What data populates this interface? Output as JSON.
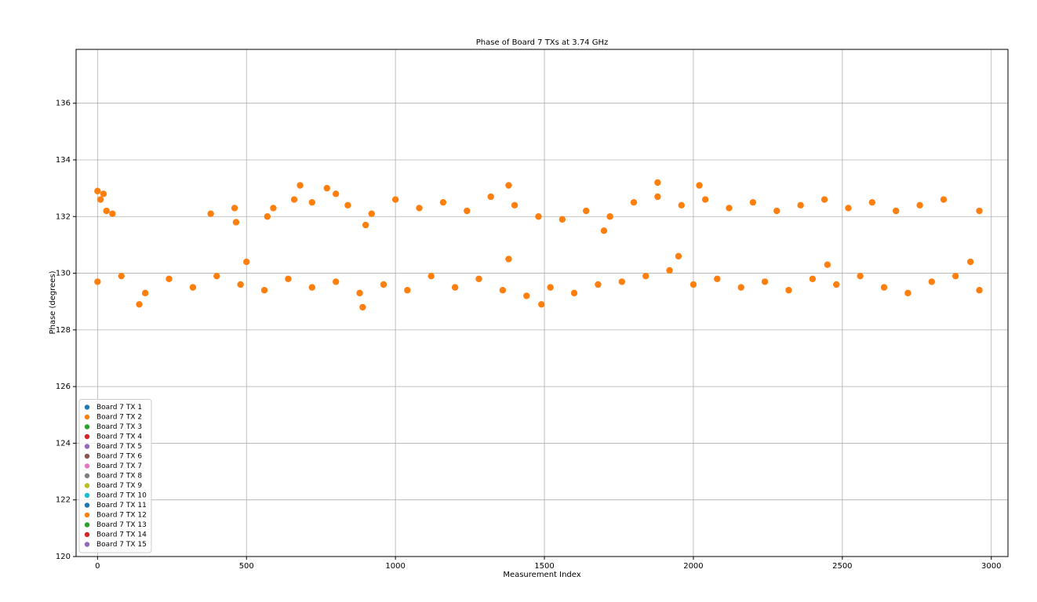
{
  "chart_data": {
    "type": "scatter",
    "title": "Phase of Board 7 TXs at 3.74 GHz",
    "x_label": "Measurement Index",
    "y_label": "Phase (degrees)",
    "xlim": [
      -72,
      3056
    ],
    "ylim": [
      120,
      137.9
    ],
    "xticks": [
      0,
      500,
      1000,
      1500,
      2000,
      2500,
      3000
    ],
    "yticks": [
      120,
      122,
      124,
      126,
      128,
      130,
      132,
      134,
      136
    ],
    "grid": true,
    "legend_position": "lower left",
    "series": [
      {
        "name": "Board 7 TX 1",
        "color": "#1f77b4",
        "x": [],
        "values": []
      },
      {
        "name": "Board 7 TX 2",
        "color": "#ff7f0e",
        "x": [
          0,
          80,
          160,
          240,
          320,
          400,
          480,
          560,
          640,
          720,
          800,
          880,
          960,
          1040,
          1120,
          1200,
          1280,
          1360,
          1440,
          1520,
          1600,
          1680,
          1760,
          1840,
          1920,
          2000,
          2080,
          2160,
          2240,
          2320,
          2400,
          2480,
          2560,
          2640,
          2720,
          2800,
          2880,
          2960,
          140,
          500,
          890,
          1380,
          1950,
          2450,
          2930,
          1490,
          840,
          920,
          1000,
          1080,
          1160,
          1240,
          1320,
          1400,
          1480,
          1560,
          1640,
          1720,
          1800,
          1880,
          1960,
          2040,
          2120,
          2200,
          2280,
          2360,
          2440,
          2520,
          2600,
          2680,
          2760,
          2840,
          2960,
          1380,
          1880,
          2020,
          1700,
          900,
          0,
          10,
          20,
          30,
          50,
          380,
          460,
          465,
          570,
          590,
          660,
          680,
          720,
          770,
          800
        ],
        "values": [
          129.7,
          129.9,
          129.3,
          129.8,
          129.5,
          129.9,
          129.6,
          129.4,
          129.8,
          129.5,
          129.7,
          129.3,
          129.6,
          129.4,
          129.9,
          129.5,
          129.8,
          129.4,
          129.2,
          129.5,
          129.3,
          129.6,
          129.7,
          129.9,
          130.1,
          129.6,
          129.8,
          129.5,
          129.7,
          129.4,
          129.8,
          129.6,
          129.9,
          129.5,
          129.3,
          129.7,
          129.9,
          129.4,
          128.9,
          130.4,
          128.8,
          130.5,
          130.6,
          130.3,
          130.4,
          128.9,
          132.4,
          132.1,
          132.6,
          132.3,
          132.5,
          132.2,
          132.7,
          132.4,
          132.0,
          131.9,
          132.2,
          132.0,
          132.5,
          132.7,
          132.4,
          132.6,
          132.3,
          132.5,
          132.2,
          132.4,
          132.6,
          132.3,
          132.5,
          132.2,
          132.4,
          132.6,
          132.2,
          133.1,
          133.2,
          133.1,
          131.5,
          131.7,
          132.9,
          132.6,
          132.8,
          132.2,
          132.1,
          132.1,
          132.3,
          131.8,
          132.0,
          132.3,
          132.6,
          133.1,
          132.5,
          133.0,
          132.8
        ]
      },
      {
        "name": "Board 7 TX 3",
        "color": "#2ca02c",
        "x": [],
        "values": []
      },
      {
        "name": "Board 7 TX 4",
        "color": "#d62728",
        "x": [],
        "values": []
      },
      {
        "name": "Board 7 TX 5",
        "color": "#9467bd",
        "x": [],
        "values": []
      },
      {
        "name": "Board 7 TX 6",
        "color": "#8c564b",
        "x": [],
        "values": []
      },
      {
        "name": "Board 7 TX 7",
        "color": "#e377c2",
        "x": [],
        "values": []
      },
      {
        "name": "Board 7 TX 8",
        "color": "#7f7f7f",
        "x": [],
        "values": []
      },
      {
        "name": "Board 7 TX 9",
        "color": "#bcbd22",
        "x": [],
        "values": []
      },
      {
        "name": "Board 7 TX 10",
        "color": "#17becf",
        "x": [],
        "values": []
      },
      {
        "name": "Board 7 TX 11",
        "color": "#1f77b4",
        "x": [],
        "values": []
      },
      {
        "name": "Board 7 TX 12",
        "color": "#ff7f0e",
        "x": [],
        "values": []
      },
      {
        "name": "Board 7 TX 13",
        "color": "#2ca02c",
        "x": [],
        "values": []
      },
      {
        "name": "Board 7 TX 14",
        "color": "#d62728",
        "x": [],
        "values": []
      },
      {
        "name": "Board 7 TX 15",
        "color": "#9467bd",
        "x": [],
        "values": []
      }
    ]
  }
}
